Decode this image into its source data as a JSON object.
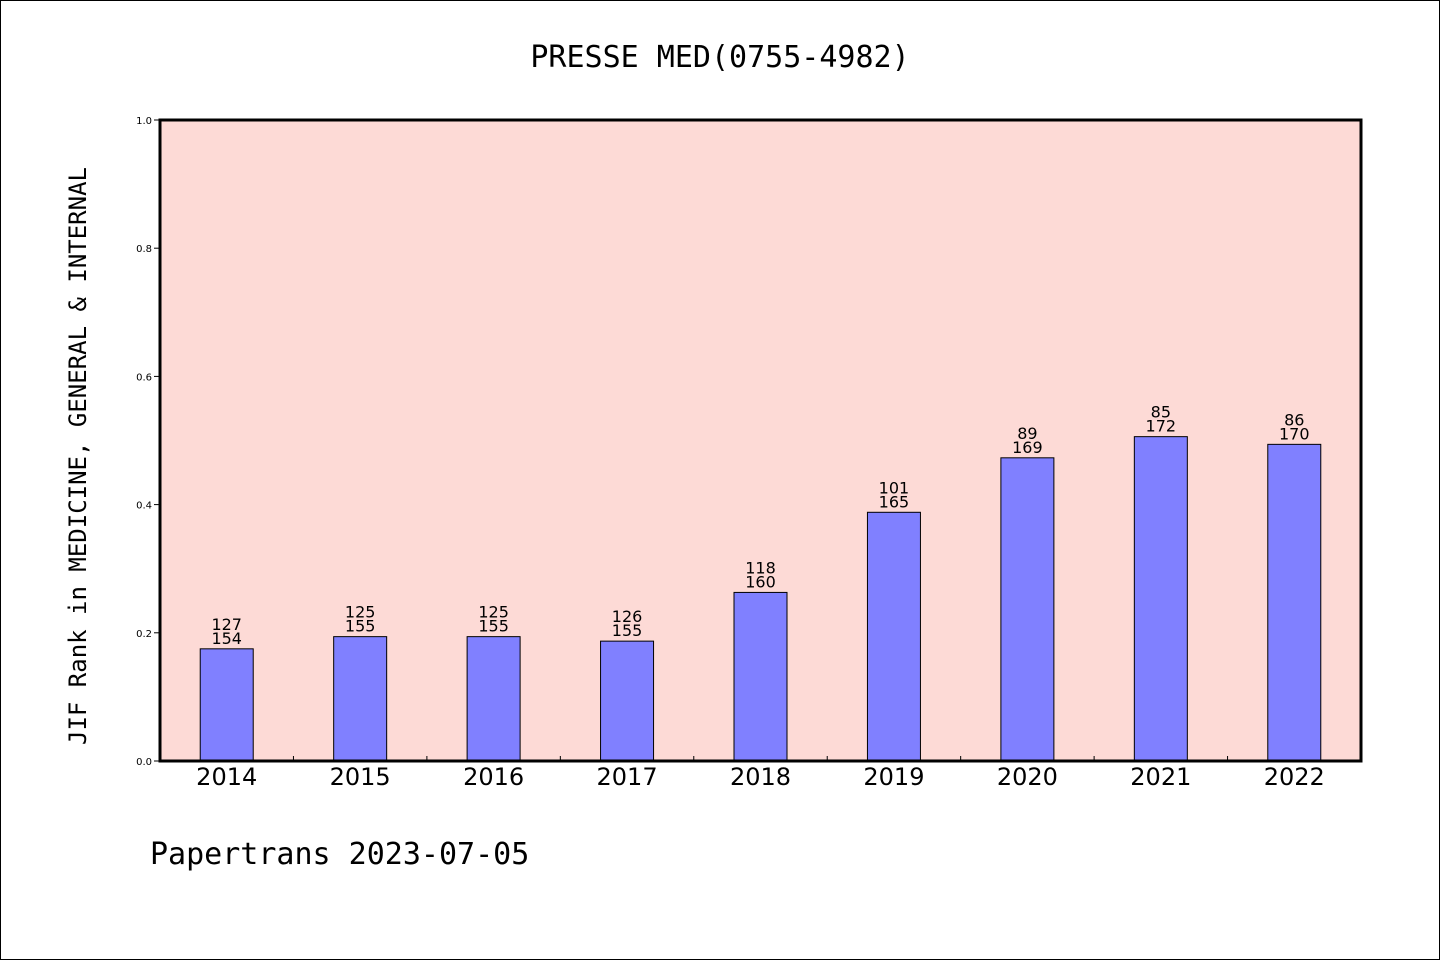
{
  "chart_data": {
    "type": "bar",
    "title": "PRESSE MED(0755-4982)",
    "ylabel": "JIF Rank in MEDICINE, GENERAL & INTERNAL",
    "xlabel": "",
    "ylim": [
      0,
      1.0
    ],
    "yticks": [
      "0.0",
      "0.2",
      "0.4",
      "0.6",
      "0.8",
      "1.0"
    ],
    "categories": [
      "2014",
      "2015",
      "2016",
      "2017",
      "2018",
      "2019",
      "2020",
      "2021",
      "2022"
    ],
    "values": [
      0.175,
      0.194,
      0.194,
      0.187,
      0.263,
      0.388,
      0.473,
      0.506,
      0.494
    ],
    "rank": [
      "127",
      "125",
      "125",
      "126",
      "118",
      "101",
      "89",
      "85",
      "86"
    ],
    "total": [
      "154",
      "155",
      "155",
      "155",
      "160",
      "165",
      "169",
      "172",
      "170"
    ],
    "plot_background": "#fddad6",
    "bar_color": "#8080ff",
    "grid": false
  },
  "footer": "Papertrans 2023-07-05"
}
